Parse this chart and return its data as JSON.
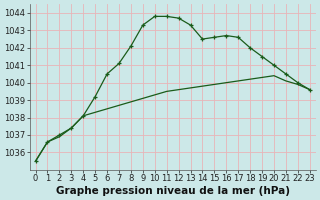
{
  "title": "Graphe pression niveau de la mer (hPa)",
  "bg_color": "#cce8e8",
  "grid_color": "#e8b4b8",
  "line_color": "#1a5c1a",
  "x_values": [
    0,
    1,
    2,
    3,
    4,
    5,
    6,
    7,
    8,
    9,
    10,
    11,
    12,
    13,
    14,
    15,
    16,
    17,
    18,
    19,
    20,
    21,
    22,
    23
  ],
  "series1": [
    1035.5,
    1036.6,
    1037.0,
    1037.4,
    1038.1,
    1039.2,
    1040.5,
    1041.1,
    1042.1,
    1043.3,
    1043.8,
    1043.8,
    1043.7,
    1043.3,
    1042.5,
    1042.6,
    1042.7,
    1042.6,
    1042.0,
    1041.5,
    1041.0,
    1040.5,
    1040.0,
    1039.6
  ],
  "series2": [
    1035.5,
    1036.6,
    1036.9,
    1037.4,
    1038.1,
    1038.3,
    1038.5,
    1038.7,
    1038.9,
    1039.1,
    1039.3,
    1039.5,
    1039.6,
    1039.7,
    1039.8,
    1039.9,
    1040.0,
    1040.1,
    1040.2,
    1040.3,
    1040.4,
    1040.1,
    1039.9,
    1039.6
  ],
  "ylim": [
    1035.0,
    1044.5
  ],
  "yticks": [
    1036,
    1037,
    1038,
    1039,
    1040,
    1041,
    1042,
    1043,
    1044
  ],
  "title_fontsize": 7.5,
  "tick_fontsize": 6.0,
  "figsize": [
    3.2,
    2.0
  ],
  "dpi": 100
}
